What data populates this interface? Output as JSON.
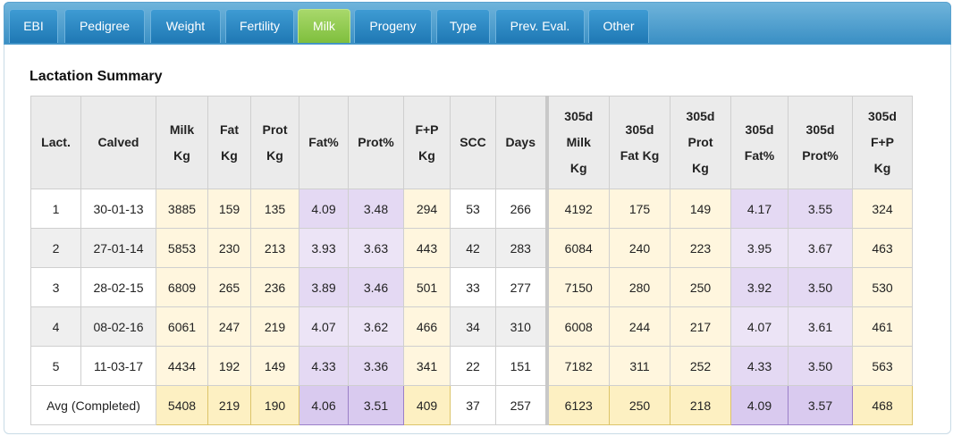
{
  "tabs": [
    {
      "label": "EBI",
      "active": false
    },
    {
      "label": "Pedigree",
      "active": false
    },
    {
      "label": "Weight",
      "active": false
    },
    {
      "label": "Fertility",
      "active": false
    },
    {
      "label": "Milk",
      "active": true
    },
    {
      "label": "Progeny",
      "active": false
    },
    {
      "label": "Type",
      "active": false
    },
    {
      "label": "Prev. Eval.",
      "active": false
    },
    {
      "label": "Other",
      "active": false
    }
  ],
  "section_title": "Lactation Summary",
  "table": {
    "headers": [
      [
        "Lact."
      ],
      [
        "Calved"
      ],
      [
        "Milk",
        "Kg"
      ],
      [
        "Fat",
        "Kg"
      ],
      [
        "Prot",
        "Kg"
      ],
      [
        "Fat%"
      ],
      [
        "Prot%"
      ],
      [
        "F+P",
        "Kg"
      ],
      [
        "SCC"
      ],
      [
        "Days"
      ],
      [
        "305d",
        "Milk",
        "Kg"
      ],
      [
        "305d",
        "Fat Kg"
      ],
      [
        "305d",
        "Prot",
        "Kg"
      ],
      [
        "305d",
        "Fat%"
      ],
      [
        "305d",
        "Prot%"
      ],
      [
        "305d",
        "F+P",
        "Kg"
      ]
    ],
    "rows": [
      [
        "1",
        "30-01-13",
        "3885",
        "159",
        "135",
        "4.09",
        "3.48",
        "294",
        "53",
        "266",
        "4192",
        "175",
        "149",
        "4.17",
        "3.55",
        "324"
      ],
      [
        "2",
        "27-01-14",
        "5853",
        "230",
        "213",
        "3.93",
        "3.63",
        "443",
        "42",
        "283",
        "6084",
        "240",
        "223",
        "3.95",
        "3.67",
        "463"
      ],
      [
        "3",
        "28-02-15",
        "6809",
        "265",
        "236",
        "3.89",
        "3.46",
        "501",
        "33",
        "277",
        "7150",
        "280",
        "250",
        "3.92",
        "3.50",
        "530"
      ],
      [
        "4",
        "08-02-16",
        "6061",
        "247",
        "219",
        "4.07",
        "3.62",
        "466",
        "34",
        "310",
        "6008",
        "244",
        "217",
        "4.07",
        "3.61",
        "461"
      ],
      [
        "5",
        "11-03-17",
        "4434",
        "192",
        "149",
        "4.33",
        "3.36",
        "341",
        "22",
        "151",
        "7182",
        "311",
        "252",
        "4.33",
        "3.50",
        "563"
      ]
    ],
    "avg_row": [
      "Avg (Completed)",
      "",
      "5408",
      "219",
      "190",
      "4.06",
      "3.51",
      "409",
      "37",
      "257",
      "6123",
      "250",
      "218",
      "4.09",
      "3.57",
      "468"
    ]
  },
  "colors": {
    "milk_cell": "#fff6de",
    "pct_cell": "#e4d9f3",
    "tab_active": "#7fbf3d",
    "tab_default": "#1f78b4"
  }
}
